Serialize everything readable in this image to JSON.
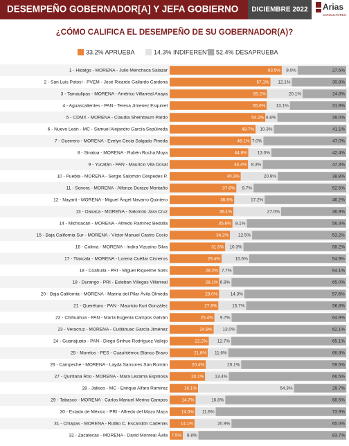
{
  "chart_data": {
    "type": "stacked_barh",
    "title": "DESEMPEÑO GOBERNADOR[A] Y JEFA GOBIERNO",
    "date": "DICIEMBRE 2022",
    "brand": "Arias",
    "brand_sub": "CONSULTORES",
    "subtitle": "¿CÓMO CALIFICA EL DESEMPEÑO DE SU GOBERNADOR(A)?",
    "xlim": [
      0,
      100
    ],
    "categories": [
      "1 - Hidalgo - MORENA - Julio Menchaca Salazar",
      "2 - San Luis Potosí - PVEM - José Ricardo Gallardo Cardona",
      "3 - Tamaulipas - MORENA - Américo Villarreal Anaya",
      "4 - Aguascalientes - PAN - Teresa Jimenez Esquivel",
      "5 - CDMX - MORENA - Claudia Sheinbaum Pardo",
      "6 - Nuevo León - MC - Samuel Alejandro García Sepúlveda",
      "7 - Guerrero - MORENA - Evelyn Cecia Salgado Pineda",
      "8 - Sinaloa - MORENA - Rubén Rocha Moya",
      "9 - Yucatán - PAN - Mauricio Vila Dosal",
      "10 - Puebla - MORENA - Sergio Salomón Céspedes P.",
      "11 - Sonora - MORENA - Alfonzo Durazo Montaño",
      "12 - Nayarit - MORENA - Miguel Ángel Navarro Quintero",
      "13 - Oaxaca - MORENA - Salomón Jara Cruz",
      "14 - Michoacán - MORENA - Alfredo Ramírez Bedolla",
      "15 - Baja California Sur - MORENA - Víctor Manuel Castro Cosío",
      "16 - Colima - MORENA - Indira Vizcaino Silva",
      "17 - Tlaxcala - MORENA - Lorena Cuéllar Cisneros",
      "18 - Coahuila - PRI - Miguel Riquelme Solís",
      "19 - Durango - PRI - Esteban Villegas Villarreal",
      "20 - Baja California - MORENA - Marina del Pilar Ávila Olmeda",
      "21 - Querétaro - PAN - Mauricio Kuri González",
      "22 - Chihuahua - PAN - María Eugenia Campos Galván",
      "23 - Veracruz - MORENA - Cuitláhuac García Jiménez",
      "24 - Guanajuato - PAN - Diego Sinhue Rodríguez Vallejo",
      "25 - Morelos - PES - Cuauhtémoc Blanco Bravo",
      "26 - Campeche - MORENA - Layda Sansores San Román",
      "27 - Quintana Roo - MORENA - Mara Lezama Espinosa",
      "28 - Jalisco - MC - Enrique Alfaro Ramírez",
      "29 - Tabasco - MORENA - Carlos Manuel Merino Campos",
      "30 - Estado de México - PRI - Alfredo del Mazo Maza",
      "31 - Chiapas - MORENA - Rutilio C. Escandón Cadenas",
      "32 - Zacatecas - MORENA - David Monreal Ávila"
    ],
    "series": [
      {
        "name": "33.2% APRUEBA",
        "color": "#e8853a",
        "label_color": "#ffffff",
        "values": [
          63.5,
          57.1,
          55.2,
          55.0,
          54.2,
          48.7,
          46.1,
          44.6,
          44.4,
          40.3,
          37.8,
          36.6,
          36.1,
          35.6,
          34.2,
          31.5,
          29.4,
          28.2,
          28.1,
          28.0,
          27.6,
          25.4,
          24.9,
          22.2,
          21.6,
          20.4,
          20.1,
          16.1,
          14.7,
          14.5,
          14.1,
          7.5
        ],
        "value_labels": [
          "63.5%",
          "57.1%",
          "55.2%",
          "55.0%",
          "54.2%",
          "48.7%",
          "46.1%",
          "44.6%",
          "44.4%",
          "40.3%",
          "37.8%",
          "36.6%",
          "36.1%",
          "35.6%",
          "34.2%",
          "31.5%",
          "29.4%",
          "28.2%",
          "28.1%",
          "28.0%",
          "27.6%",
          "25.4%",
          "24.9%",
          "22.2%",
          "21.6%",
          "20.4%",
          "20.1%",
          "16.1%",
          "14.7%",
          "14.5%",
          "14.1%",
          "7.5%"
        ]
      },
      {
        "name": "14.3% INDIFERENTE",
        "color": "#e2e2e2",
        "label_color": "#333333",
        "values": [
          9.0,
          12.1,
          20.1,
          13.1,
          6.8,
          10.3,
          7.0,
          13.0,
          8.3,
          20.9,
          9.7,
          17.2,
          27.0,
          8.1,
          12.5,
          10.3,
          15.6,
          7.7,
          6.9,
          14.3,
          15.7,
          9.7,
          13.0,
          12.7,
          11.6,
          20.1,
          13.4,
          54.3,
          16.8,
          11.6,
          20.9,
          8.8
        ],
        "value_labels": [
          "9.0%",
          "12.1%",
          "20.1%",
          "13.1%",
          "6.8%",
          "10.3%",
          "7.0%",
          "13.0%",
          "8.3%",
          "20.9%",
          "9.7%",
          "17.2%",
          "27.0%",
          "8.1%",
          "12.5%",
          "10.3%",
          "15.6%",
          "7.7%",
          "6.9%",
          "14.3%",
          "15.7%",
          "9.7%",
          "13.0%",
          "12.7%",
          "11.6%",
          "20.1%",
          "13.4%",
          "54.3%",
          "16.8%",
          "11.6%",
          "20.9%",
          "8.8%"
        ]
      },
      {
        "name": "52.4% DESAPRUEBA",
        "color": "#a9a9a9",
        "label_color": "#222222",
        "values": [
          27.5,
          30.8,
          24.8,
          31.9,
          39.0,
          41.1,
          47.0,
          42.4,
          47.3,
          38.8,
          52.5,
          46.2,
          36.9,
          56.3,
          53.2,
          58.2,
          54.9,
          64.1,
          65.0,
          57.6,
          56.8,
          64.9,
          62.1,
          65.1,
          66.8,
          59.5,
          66.5,
          29.7,
          68.5,
          73.9,
          65.0,
          83.7
        ],
        "value_labels": [
          "27.5%",
          "30.8%",
          "24.8%",
          "31.9%",
          "39.0%",
          "41.1%",
          "47.0%",
          "42.4%",
          "47.3%",
          "38.8%",
          "52.5%",
          "46.2%",
          "36.9%",
          "56.3%",
          "53.2%",
          "58.2%",
          "54.9%",
          "64.1%",
          "65.0%",
          "57.6%",
          "56.8%",
          "64.9%",
          "62.1%",
          "65.1%",
          "66.8%",
          "59.5%",
          "66.5%",
          "29.7%",
          "68.5%",
          "73.9%",
          "65.0%",
          "83.7%"
        ]
      }
    ]
  }
}
